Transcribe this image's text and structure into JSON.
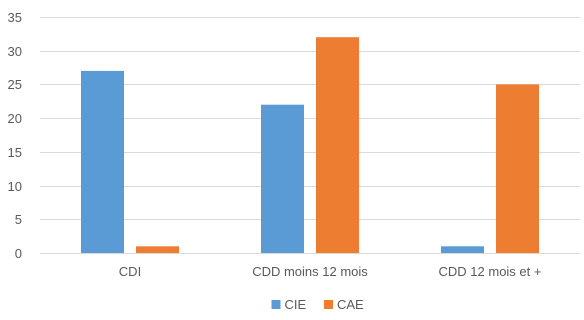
{
  "chart_data": {
    "type": "bar",
    "title": "",
    "xlabel": "",
    "ylabel": "",
    "categories": [
      "CDI",
      "CDD moins 12 mois",
      "CDD 12 mois et +"
    ],
    "series": [
      {
        "name": "CIE",
        "color": "#5B9BD5",
        "values": [
          27,
          22,
          1
        ]
      },
      {
        "name": "CAE",
        "color": "#ED7D31",
        "values": [
          1,
          32,
          25
        ]
      }
    ],
    "ylim": [
      0,
      35
    ],
    "yticks": [
      "0",
      "5",
      "10",
      "15",
      "20",
      "25",
      "30",
      "35"
    ],
    "grid": true,
    "legend_position": "bottom-center"
  }
}
